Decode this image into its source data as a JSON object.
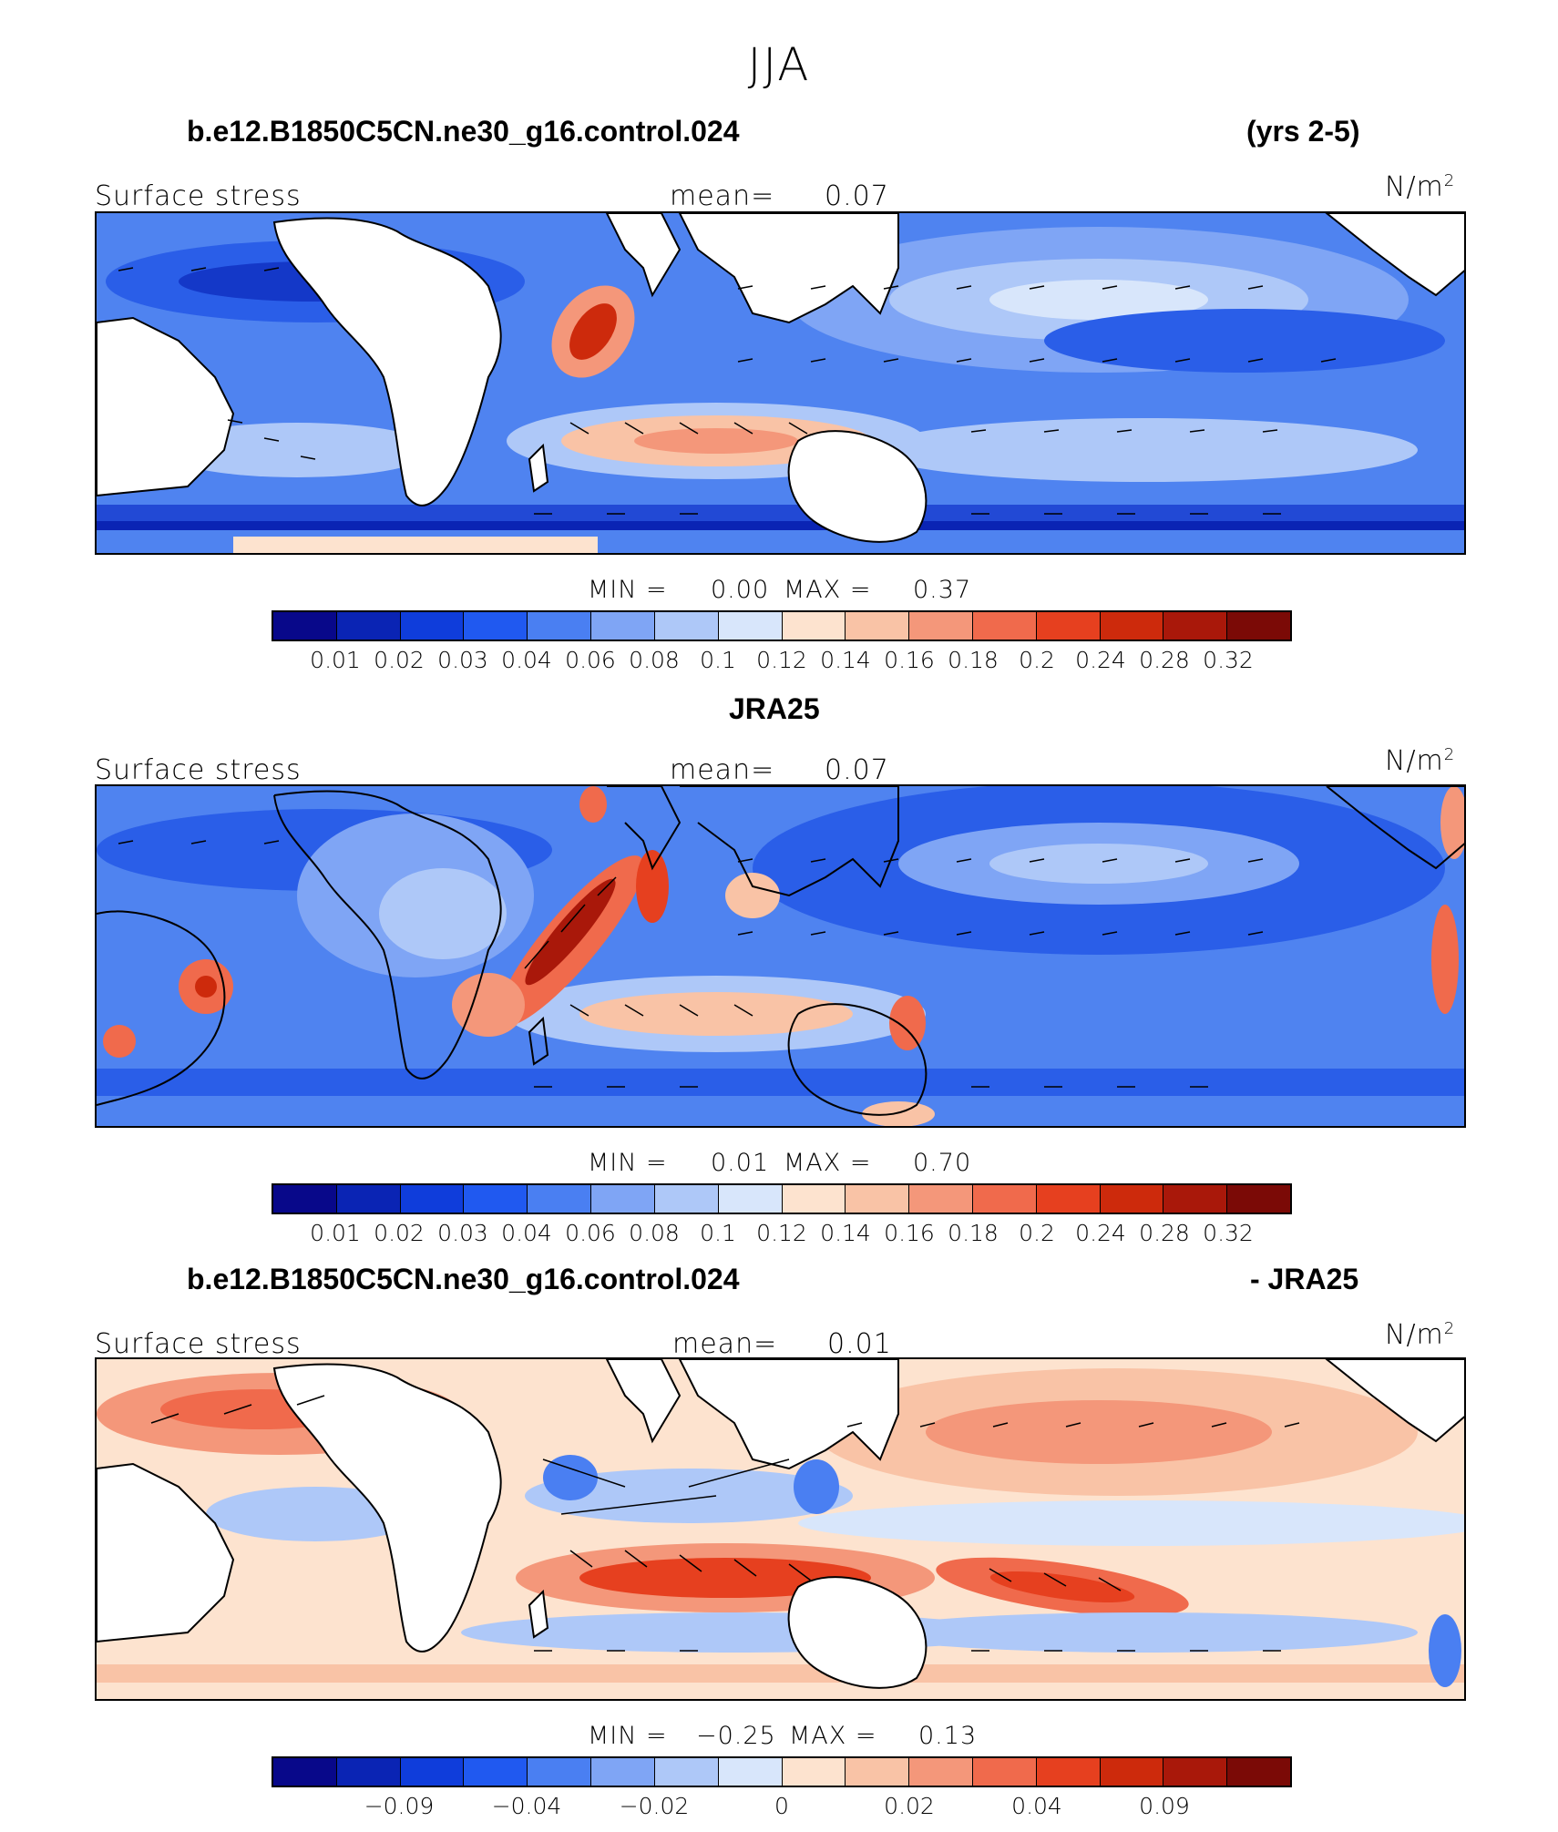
{
  "page_title": "JJA",
  "colors": [
    "#08088a",
    "#0a24b4",
    "#0f3ddb",
    "#2059f0",
    "#4a7ff2",
    "#7fa5f5",
    "#aec8f8",
    "#d8e6fb",
    "#fde3cf",
    "#f9c3a6",
    "#f4977a",
    "#f06a4c",
    "#e6401f",
    "#cd2a0c",
    "#a9180a",
    "#7b0a06"
  ],
  "icons": {
    "arrow": "wind-vector-arrow"
  },
  "panels": [
    {
      "title_left": "b.e12.B1850C5CN.ne30_g16.control.024",
      "title_right": "(yrs 2-5)",
      "variable": "Surface stress",
      "mean_label": "mean=",
      "mean_value": "0.07",
      "units": "N/m",
      "units_sup": "2",
      "min_label": "MIN =",
      "min_value": "0.00",
      "max_label": "MAX =",
      "max_value": "0.37",
      "ticks": [
        "0.01",
        "0.02",
        "0.03",
        "0.04",
        "0.06",
        "0.08",
        "0.1",
        "0.12",
        "0.14",
        "0.16",
        "0.18",
        "0.2",
        "0.24",
        "0.28",
        "0.32"
      ]
    },
    {
      "title_left": "JRA25",
      "title_right": "",
      "variable": "Surface stress",
      "mean_label": "mean=",
      "mean_value": "0.07",
      "units": "N/m",
      "units_sup": "2",
      "min_label": "MIN =",
      "min_value": "0.01",
      "max_label": "MAX =",
      "max_value": "0.70",
      "ticks": [
        "0.01",
        "0.02",
        "0.03",
        "0.04",
        "0.06",
        "0.08",
        "0.1",
        "0.12",
        "0.14",
        "0.16",
        "0.18",
        "0.2",
        "0.24",
        "0.28",
        "0.32"
      ]
    },
    {
      "title_left": "b.e12.B1850C5CN.ne30_g16.control.024",
      "title_right": "- JRA25",
      "variable": "Surface stress",
      "mean_label": "mean=",
      "mean_value": "0.01",
      "units": "N/m",
      "units_sup": "2",
      "min_label": "MIN =",
      "min_value": "−0.25",
      "max_label": "MAX =",
      "max_value": "0.13",
      "ticks": [
        "−0.09",
        "−0.04",
        "−0.02",
        "0",
        "0.02",
        "0.04",
        "0.09"
      ]
    }
  ]
}
